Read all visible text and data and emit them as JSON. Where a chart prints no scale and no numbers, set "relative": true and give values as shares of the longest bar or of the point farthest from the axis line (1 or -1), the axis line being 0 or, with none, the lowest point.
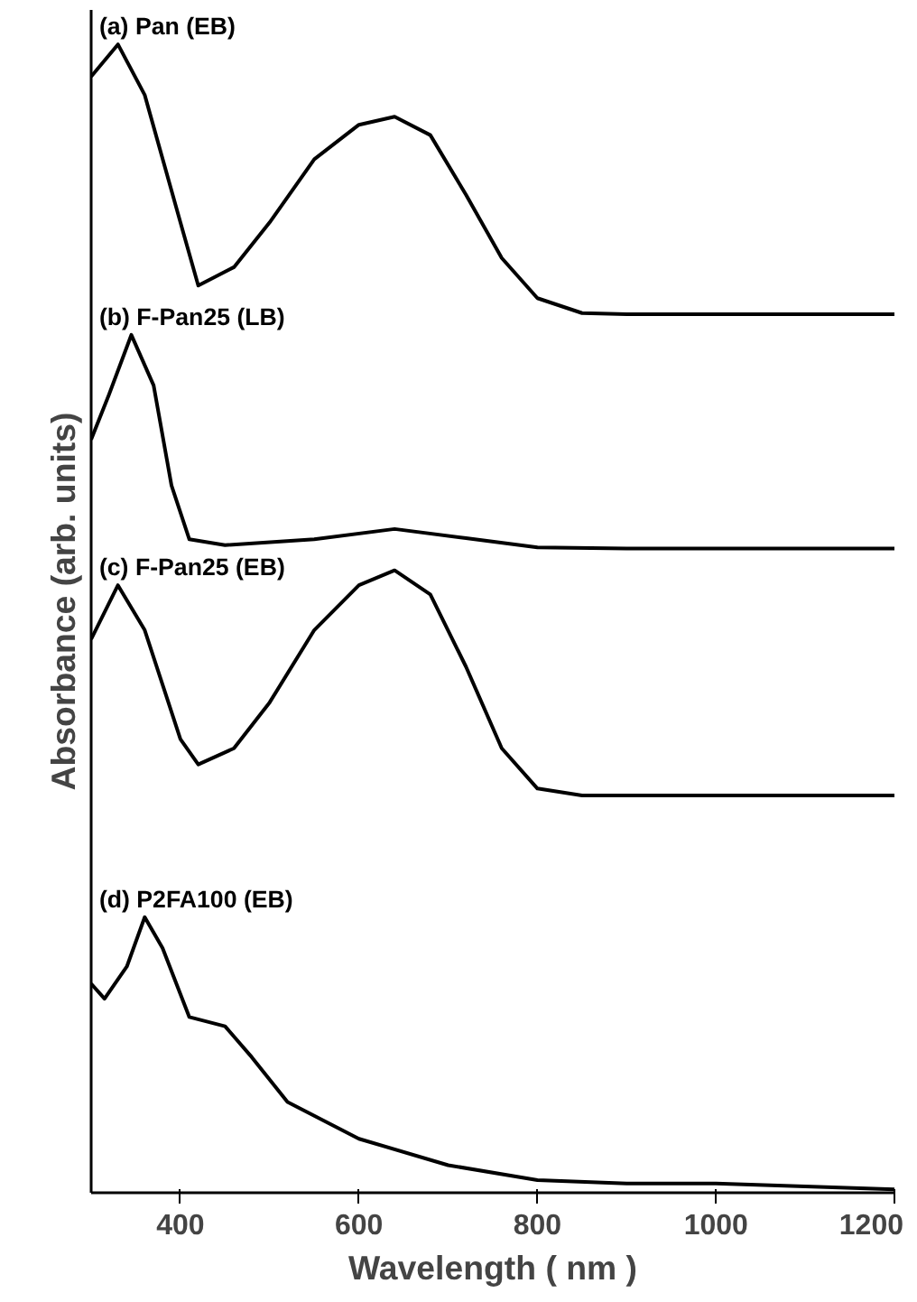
{
  "chart_data": {
    "type": "line",
    "relative": true,
    "xlabel": "Wavelength ( nm )",
    "ylabel": "Absorbance (arb. units)",
    "xlim": [
      300,
      1200
    ],
    "xticks": [
      400,
      600,
      800,
      1000,
      1200
    ],
    "tick_labels": "x",
    "grid": false,
    "marker": "none",
    "line_style": "solid",
    "series": [
      {
        "name": "(a) Pan (EB)",
        "color": "#000000",
        "x": [
          300,
          330,
          360,
          400,
          420,
          460,
          500,
          550,
          600,
          640,
          680,
          720,
          760,
          800,
          850,
          900,
          1000,
          1200
        ],
        "values": [
          0.972,
          1.0,
          0.956,
          0.845,
          0.79,
          0.806,
          0.845,
          0.9,
          0.93,
          0.937,
          0.921,
          0.869,
          0.814,
          0.779,
          0.766,
          0.765,
          0.765,
          0.765
        ]
      },
      {
        "name": "(b) F-Pan25 (LB)",
        "color": "#000000",
        "x": [
          300,
          320,
          345,
          370,
          390,
          410,
          450,
          550,
          640,
          720,
          800,
          900,
          1200
        ],
        "values": [
          0.656,
          0.695,
          0.747,
          0.703,
          0.616,
          0.569,
          0.564,
          0.569,
          0.578,
          0.57,
          0.562,
          0.561,
          0.561
        ]
      },
      {
        "name": "(c) F-Pan25 (EB)",
        "color": "#000000",
        "x": [
          300,
          330,
          360,
          400,
          420,
          460,
          500,
          550,
          600,
          640,
          680,
          720,
          760,
          800,
          850,
          1200
        ],
        "values": [
          0.482,
          0.529,
          0.49,
          0.395,
          0.373,
          0.387,
          0.427,
          0.49,
          0.529,
          0.542,
          0.521,
          0.458,
          0.387,
          0.352,
          0.346,
          0.346
        ]
      },
      {
        "name": "(d) P2FA100 (EB)",
        "color": "#000000",
        "x": [
          300,
          315,
          340,
          360,
          380,
          410,
          450,
          480,
          520,
          600,
          700,
          800,
          900,
          1000,
          1200
        ],
        "values": [
          0.182,
          0.169,
          0.197,
          0.24,
          0.213,
          0.153,
          0.145,
          0.118,
          0.079,
          0.047,
          0.024,
          0.011,
          0.008,
          0.008,
          0.003
        ]
      }
    ]
  }
}
